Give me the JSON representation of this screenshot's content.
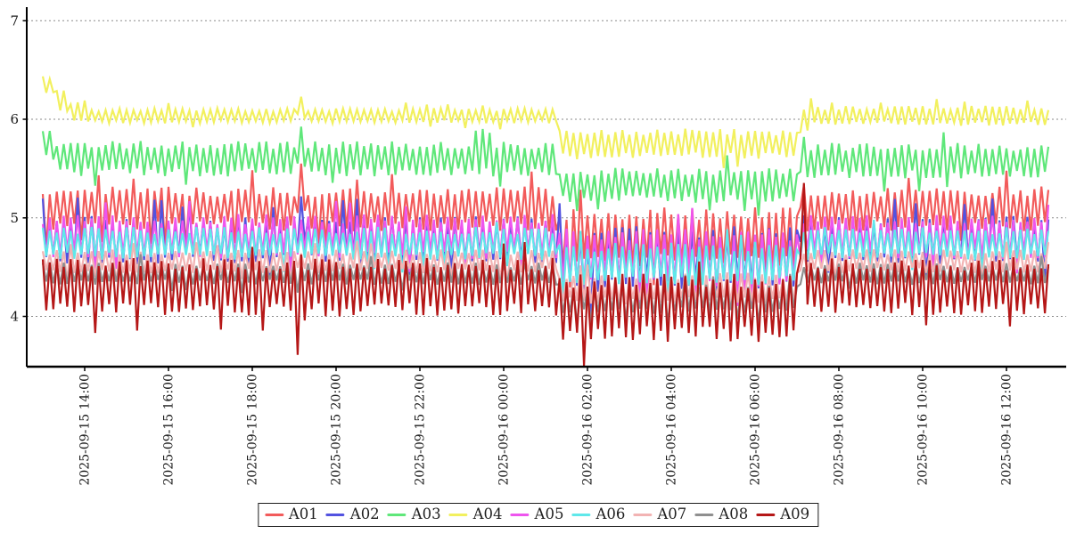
{
  "chart_data": {
    "type": "line",
    "title": "",
    "xlabel": "",
    "ylabel": "",
    "time_start": "2025-09-15 13:00",
    "time_end": "2025-09-16 13:00",
    "sample_minutes": 5,
    "x_axis": {
      "tick_hours_from_start": [
        1,
        3,
        5,
        7,
        9,
        11,
        13,
        15,
        17,
        19,
        21,
        23
      ],
      "tick_labels": [
        "2025-09-15 14:00",
        "2025-09-15 16:00",
        "2025-09-15 18:00",
        "2025-09-15 20:00",
        "2025-09-15 22:00",
        "2025-09-16 00:00",
        "2025-09-16 02:00",
        "2025-09-16 04:00",
        "2025-09-16 06:00",
        "2025-09-16 08:00",
        "2025-09-16 10:00",
        "2025-09-16 12:00"
      ],
      "label_rotation_degrees": 90,
      "hours_total": 24
    },
    "y_axis": {
      "ticks": [
        4,
        5,
        6,
        7
      ],
      "min": 3.49,
      "max": 7.12
    },
    "grid": {
      "horizontal": true,
      "vertical": false,
      "style": "dashed",
      "color": "#8a8a8a"
    },
    "axis_color": "#000000",
    "legend": {
      "position": "bottom-center",
      "labels": [
        "A01",
        "A02",
        "A03",
        "A04",
        "A05",
        "A06",
        "A07",
        "A08",
        "A09"
      ]
    },
    "segments_format": "each segment = [start_hour_offset, end_hour_offset, band_low_value, band_high_value]; every series oscillates at 5-minute steps between band_low and band_high; all series drop to lower bands between 2025-09-16 01:18 and 07:00 (offsets 12.3 to 18.0), spike up around 2025-09-15 19:00 (offset 6.0) and at recovery 2025-09-16 07:00 (offset 18.0)",
    "series": [
      {
        "name": "A01",
        "color": "#f25b5b",
        "segments": [
          [
            0,
            6.0,
            4.9,
            5.28
          ],
          [
            6.0,
            6.25,
            5.05,
            5.42
          ],
          [
            6.25,
            12.3,
            4.9,
            5.28
          ],
          [
            12.3,
            18.0,
            4.55,
            5.06
          ],
          [
            18.0,
            18.17,
            5.05,
            5.38
          ],
          [
            18.17,
            24,
            4.9,
            5.28
          ]
        ]
      },
      {
        "name": "A02",
        "color": "#5252e0",
        "segments": [
          [
            0,
            6.0,
            4.57,
            4.98
          ],
          [
            6.0,
            6.25,
            4.7,
            5.1
          ],
          [
            6.25,
            12.3,
            4.57,
            4.98
          ],
          [
            12.3,
            18.0,
            4.3,
            4.86
          ],
          [
            18.0,
            18.17,
            4.7,
            5.05
          ],
          [
            18.17,
            24,
            4.57,
            4.98
          ]
        ]
      },
      {
        "name": "A03",
        "color": "#5fe77a",
        "segments": [
          [
            0,
            0.3,
            5.6,
            5.9
          ],
          [
            0.3,
            6.0,
            5.45,
            5.75
          ],
          [
            6.0,
            6.25,
            5.55,
            5.9
          ],
          [
            6.25,
            12.3,
            5.45,
            5.75
          ],
          [
            12.3,
            18.0,
            5.18,
            5.48
          ],
          [
            18.0,
            18.17,
            5.5,
            5.85
          ],
          [
            18.17,
            24,
            5.43,
            5.73
          ]
        ]
      },
      {
        "name": "A04",
        "color": "#f2f05e",
        "segments": [
          [
            0,
            0.3,
            6.25,
            6.42
          ],
          [
            0.3,
            0.6,
            6.1,
            6.28
          ],
          [
            0.6,
            1.0,
            6.0,
            6.18
          ],
          [
            1.0,
            6.0,
            5.97,
            6.1
          ],
          [
            6.0,
            6.25,
            6.03,
            6.22
          ],
          [
            6.25,
            12.3,
            5.97,
            6.1
          ],
          [
            12.3,
            18.0,
            5.62,
            5.88
          ],
          [
            18.0,
            24,
            5.95,
            6.12
          ]
        ]
      },
      {
        "name": "A05",
        "color": "#ee55ee",
        "segments": [
          [
            0,
            12.3,
            4.62,
            5.0
          ],
          [
            12.3,
            18.0,
            4.35,
            4.85
          ],
          [
            18.0,
            24,
            4.62,
            5.0
          ]
        ]
      },
      {
        "name": "A06",
        "color": "#5fe8ea",
        "segments": [
          [
            0,
            12.3,
            4.6,
            4.88
          ],
          [
            12.3,
            18.0,
            4.35,
            4.72
          ],
          [
            18.0,
            24,
            4.6,
            4.88
          ]
        ]
      },
      {
        "name": "A07",
        "color": "#f2b3b3",
        "segments": [
          [
            0,
            12.3,
            4.46,
            4.66
          ],
          [
            12.3,
            18.0,
            4.15,
            4.42
          ],
          [
            18.0,
            24,
            4.46,
            4.66
          ]
        ]
      },
      {
        "name": "A08",
        "color": "#8f8f8f",
        "segments": [
          [
            0,
            12.3,
            4.34,
            4.53
          ],
          [
            12.3,
            18.0,
            4.05,
            4.3
          ],
          [
            18.0,
            24,
            4.34,
            4.53
          ]
        ]
      },
      {
        "name": "A09",
        "color": "#b51717",
        "segments": [
          [
            0,
            6.0,
            4.05,
            4.55
          ],
          [
            6.0,
            6.3,
            3.95,
            4.62
          ],
          [
            6.3,
            12.3,
            4.05,
            4.55
          ],
          [
            12.3,
            18.0,
            3.8,
            4.38
          ],
          [
            18.0,
            18.17,
            4.6,
            5.45
          ],
          [
            18.17,
            24,
            4.05,
            4.55
          ]
        ]
      }
    ]
  }
}
